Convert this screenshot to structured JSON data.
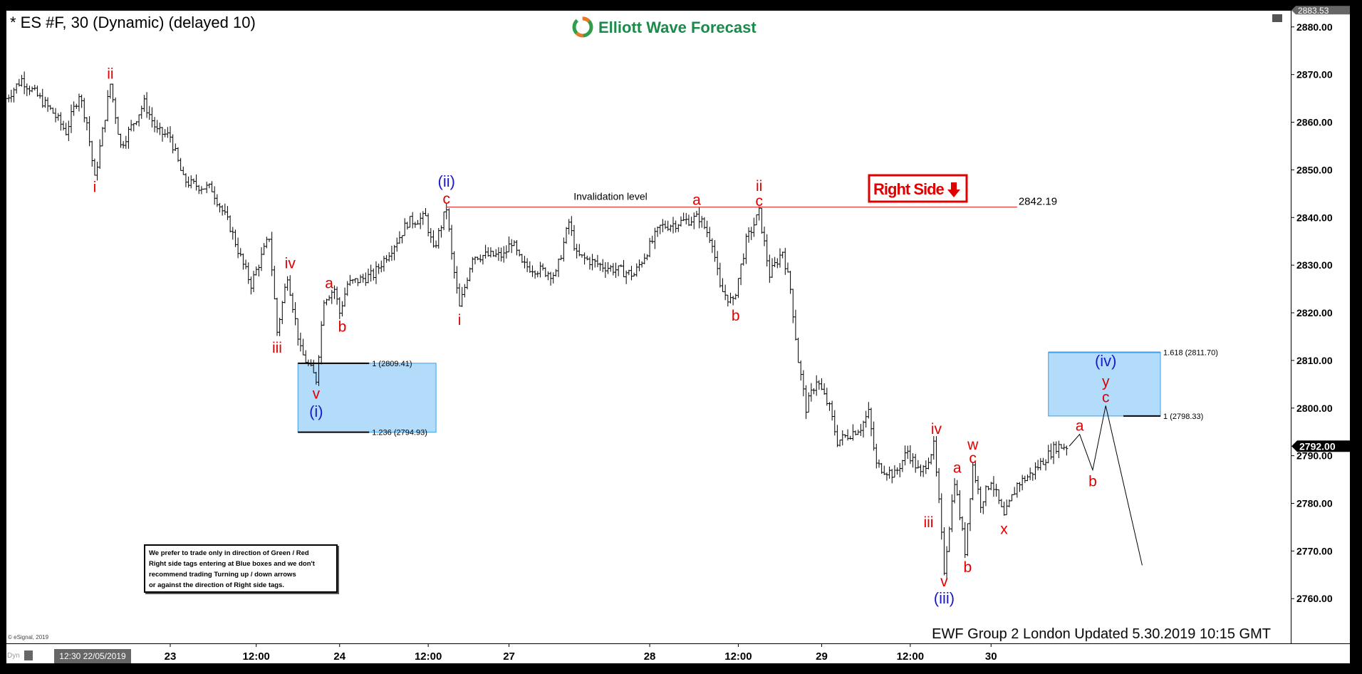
{
  "header": {
    "title": "* ES #F, 30 (Dynamic) (delayed 10)",
    "logo_text": "Elliott Wave Forecast",
    "footer": "EWF Group 2 London  Updated 5.30.2019 10:15 GMT",
    "copyright": "© eSignal, 2019",
    "dyn_label": "Dyn",
    "start_date_label": "12:30 22/05/2019",
    "note_lines": [
      "We prefer to trade only in direction of Green / Red",
      "Right side tags entering at Blue boxes and we don't",
      "recommend trading Turning up / down arrows",
      "or against the direction of Right side tags."
    ]
  },
  "chart_data": {
    "type": "bar",
    "ylim": [
      2750,
      2883.53
    ],
    "y_ticks": [
      "2880.00",
      "2870.00",
      "2860.00",
      "2850.00",
      "2840.00",
      "2830.00",
      "2820.00",
      "2810.00",
      "2800.00",
      "2790.00",
      "2780.00",
      "2770.00",
      "2760.00"
    ],
    "top_price_tag": "2883.53",
    "last_price": 2792.0,
    "last_price_label": "2792.00",
    "x_ticks": [
      {
        "bar": 63,
        "label": "23"
      },
      {
        "bar": 96,
        "label": "12:00"
      },
      {
        "bar": 128,
        "label": "24"
      },
      {
        "bar": 162,
        "label": "12:00"
      },
      {
        "bar": 193,
        "label": "27"
      },
      {
        "bar": 247,
        "label": "28"
      },
      {
        "bar": 281,
        "label": "12:00"
      },
      {
        "bar": 313,
        "label": "29"
      },
      {
        "bar": 347,
        "label": "12:00"
      },
      {
        "bar": 378,
        "label": "30"
      }
    ],
    "price_path": [
      [
        0,
        2865
      ],
      [
        6,
        2869
      ],
      [
        18,
        2862
      ],
      [
        23,
        2858
      ],
      [
        28,
        2866
      ],
      [
        31,
        2860
      ],
      [
        34,
        2848
      ],
      [
        40,
        2868
      ],
      [
        44,
        2855
      ],
      [
        53,
        2864
      ],
      [
        58,
        2858
      ],
      [
        63,
        2857
      ],
      [
        68,
        2848
      ],
      [
        71,
        2847
      ],
      [
        79,
        2846
      ],
      [
        86,
        2838
      ],
      [
        91,
        2830
      ],
      [
        94,
        2826
      ],
      [
        101,
        2836
      ],
      [
        104,
        2816
      ],
      [
        108,
        2828
      ],
      [
        113,
        2812
      ],
      [
        119,
        2806
      ],
      [
        122,
        2823
      ],
      [
        126,
        2825
      ],
      [
        128,
        2820
      ],
      [
        131,
        2826
      ],
      [
        141,
        2828
      ],
      [
        151,
        2836
      ],
      [
        154,
        2839
      ],
      [
        161,
        2840
      ],
      [
        164,
        2833
      ],
      [
        169,
        2842
      ],
      [
        171,
        2832
      ],
      [
        174,
        2821
      ],
      [
        179,
        2832
      ],
      [
        191,
        2832
      ],
      [
        194,
        2835
      ],
      [
        198,
        2830
      ],
      [
        211,
        2828
      ],
      [
        216,
        2839
      ],
      [
        219,
        2832
      ],
      [
        228,
        2830
      ],
      [
        241,
        2828
      ],
      [
        251,
        2838
      ],
      [
        266,
        2840
      ],
      [
        271,
        2835
      ],
      [
        274,
        2825
      ],
      [
        279,
        2822
      ],
      [
        284,
        2835
      ],
      [
        289,
        2841
      ],
      [
        293,
        2828
      ],
      [
        298,
        2833
      ],
      [
        301,
        2825
      ],
      [
        304,
        2810
      ],
      [
        307,
        2800
      ],
      [
        311,
        2806
      ],
      [
        316,
        2800
      ],
      [
        319,
        2793
      ],
      [
        328,
        2796
      ],
      [
        331,
        2799
      ],
      [
        334,
        2788
      ],
      [
        341,
        2786
      ],
      [
        346,
        2791
      ],
      [
        351,
        2786
      ],
      [
        356,
        2792
      ],
      [
        358,
        2780
      ],
      [
        360,
        2766
      ],
      [
        364,
        2785
      ],
      [
        368,
        2770
      ],
      [
        371,
        2788
      ],
      [
        374,
        2780
      ],
      [
        378,
        2785
      ],
      [
        383,
        2777
      ],
      [
        388,
        2784
      ],
      [
        393,
        2786
      ],
      [
        398,
        2789
      ],
      [
        403,
        2792
      ],
      [
        408,
        2792
      ]
    ],
    "projection_path": [
      [
        408,
        2792
      ],
      [
        412,
        2794.5
      ],
      [
        417,
        2787
      ],
      [
        422,
        2800.5
      ],
      [
        436,
        2767
      ]
    ],
    "invalidation": {
      "price": 2842.19,
      "label": "Invalidation level",
      "value_label": "2842.19",
      "from_bar": 169,
      "to_bar": 388
    },
    "boxes": [
      {
        "from_bar": 112,
        "to_bar": 165,
        "top": 2809.41,
        "bottom": 2794.93,
        "levels": [
          {
            "price": 2809.41,
            "label": "1 (2809.41)"
          },
          {
            "price": 2794.93,
            "label": "1.236 (2794.93)"
          }
        ]
      },
      {
        "from_bar": 400,
        "to_bar": 443,
        "top": 2811.7,
        "bottom": 2798.33,
        "levels": [
          {
            "price": 2811.7,
            "label": "1.618 (2811.70)"
          },
          {
            "price": 2798.33,
            "label": "1 (2798.33)"
          }
        ]
      }
    ],
    "right_side_tag": {
      "label": "Right Side",
      "icon": "arrow-down-icon",
      "color": "#e00000"
    },
    "wave_labels": [
      {
        "t": "i",
        "bar": 34,
        "p": 2846.4,
        "c": "red"
      },
      {
        "t": "ii",
        "bar": 40,
        "p": 2870.2,
        "c": "red"
      },
      {
        "t": "iii",
        "bar": 104,
        "p": 2812.7,
        "c": "red"
      },
      {
        "t": "iv",
        "bar": 109,
        "p": 2830.4,
        "c": "red"
      },
      {
        "t": "v",
        "bar": 119,
        "p": 2803.0,
        "c": "red"
      },
      {
        "t": "(i)",
        "bar": 119,
        "p": 2799.2,
        "c": "blue"
      },
      {
        "t": "a",
        "bar": 124,
        "p": 2826.2,
        "c": "red"
      },
      {
        "t": "b",
        "bar": 129,
        "p": 2817.1,
        "c": "red"
      },
      {
        "t": "(ii)",
        "bar": 169,
        "p": 2847.5,
        "c": "blue"
      },
      {
        "t": "c",
        "bar": 169,
        "p": 2843.9,
        "c": "red"
      },
      {
        "t": "i",
        "bar": 174,
        "p": 2818.5,
        "c": "red"
      },
      {
        "t": "a",
        "bar": 265,
        "p": 2843.7,
        "c": "red"
      },
      {
        "t": "ii",
        "bar": 289,
        "p": 2846.6,
        "c": "red"
      },
      {
        "t": "c",
        "bar": 289,
        "p": 2843.5,
        "c": "red"
      },
      {
        "t": "b",
        "bar": 280,
        "p": 2819.4,
        "c": "red"
      },
      {
        "t": "iv",
        "bar": 357,
        "p": 2795.6,
        "c": "red"
      },
      {
        "t": "w",
        "bar": 371,
        "p": 2792.3,
        "c": "red"
      },
      {
        "t": "c",
        "bar": 371,
        "p": 2789.5,
        "c": "red"
      },
      {
        "t": "a",
        "bar": 365,
        "p": 2787.5,
        "c": "red"
      },
      {
        "t": "iii",
        "bar": 354,
        "p": 2776.0,
        "c": "red"
      },
      {
        "t": "b",
        "bar": 369,
        "p": 2766.6,
        "c": "red"
      },
      {
        "t": "x",
        "bar": 383,
        "p": 2774.6,
        "c": "red"
      },
      {
        "t": "v",
        "bar": 360,
        "p": 2763.6,
        "c": "red"
      },
      {
        "t": "(iii)",
        "bar": 360,
        "p": 2760.0,
        "c": "blue"
      },
      {
        "t": "a",
        "bar": 412,
        "p": 2796.3,
        "c": "red"
      },
      {
        "t": "b",
        "bar": 417,
        "p": 2784.6,
        "c": "red"
      },
      {
        "t": "(iv)",
        "bar": 422,
        "p": 2809.8,
        "c": "blue"
      },
      {
        "t": "y",
        "bar": 422,
        "p": 2805.6,
        "c": "red"
      },
      {
        "t": "c",
        "bar": 422,
        "p": 2802.3,
        "c": "red"
      }
    ],
    "colors": {
      "red": "#e00000",
      "blue": "#1a1ac8",
      "box": "#b3dcfb",
      "box_edge": "#3c9ee6",
      "logo": "#1b8a4a"
    }
  }
}
